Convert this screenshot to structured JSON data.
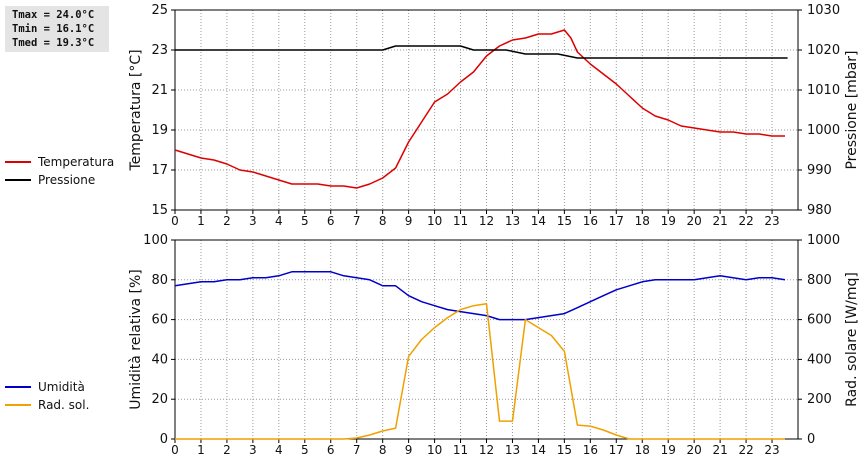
{
  "stats": [
    {
      "label": "Tmax",
      "text": "Tmax = 24.0°C"
    },
    {
      "label": "Tmin",
      "text": "Tmin = 16.1°C"
    },
    {
      "label": "Tmed",
      "text": "Tmed = 19.3°C"
    }
  ],
  "chart_data": [
    {
      "type": "line",
      "ylabel": "Temperatura [°C]",
      "y2label": "Pressione [mbar]",
      "x_ticks": [
        "0",
        "1",
        "2",
        "3",
        "4",
        "5",
        "6",
        "7",
        "8",
        "9",
        "10",
        "11",
        "12",
        "13",
        "14",
        "15",
        "16",
        "17",
        "18",
        "19",
        "20",
        "21",
        "22",
        "23"
      ],
      "xlim": [
        0,
        24
      ],
      "ylim": [
        15,
        25
      ],
      "y_ticks": [
        "15",
        "17",
        "19",
        "21",
        "23",
        "25"
      ],
      "y2lim": [
        980,
        1030
      ],
      "y2_ticks": [
        "980",
        "990",
        "1000",
        "1010",
        "1020",
        "1030"
      ],
      "grid": true,
      "legend_placement": "left",
      "series": [
        {
          "name": "Temperatura",
          "color": "#dd0000",
          "axis": "left",
          "x": [
            0,
            0.5,
            1,
            1.5,
            2,
            2.5,
            3,
            3.5,
            4,
            4.5,
            5,
            5.5,
            6,
            6.5,
            7,
            7.5,
            8,
            8.5,
            9,
            9.5,
            10,
            10.5,
            11,
            11.5,
            12,
            12.5,
            13,
            13.5,
            14,
            14.5,
            15,
            15.25,
            15.5,
            16,
            16.5,
            17,
            17.5,
            18,
            18.5,
            19,
            19.5,
            20,
            20.5,
            21,
            21.5,
            22,
            22.5,
            23,
            23.5
          ],
          "values": [
            18.0,
            17.8,
            17.6,
            17.5,
            17.3,
            17.0,
            16.9,
            16.7,
            16.5,
            16.3,
            16.3,
            16.3,
            16.2,
            16.2,
            16.1,
            16.3,
            16.6,
            17.1,
            18.4,
            19.4,
            20.4,
            20.8,
            21.4,
            21.9,
            22.7,
            23.2,
            23.5,
            23.6,
            23.8,
            23.8,
            24.0,
            23.6,
            22.9,
            22.3,
            21.8,
            21.3,
            20.7,
            20.1,
            19.7,
            19.5,
            19.2,
            19.1,
            19.0,
            18.9,
            18.9,
            18.8,
            18.8,
            18.7,
            18.7
          ]
        },
        {
          "name": "Pressione",
          "color": "#000000",
          "axis": "right",
          "x": [
            0,
            8,
            8.5,
            11,
            11.5,
            12.75,
            13.5,
            14.75,
            15.5,
            23.6
          ],
          "values": [
            1020,
            1020,
            1021,
            1021,
            1020,
            1020,
            1019,
            1019,
            1018,
            1018
          ]
        }
      ]
    },
    {
      "type": "line",
      "ylabel": "Umidità relativa [%]",
      "y2label": "Rad. solare [W/mq]",
      "x_ticks": [
        "0",
        "1",
        "2",
        "3",
        "4",
        "5",
        "6",
        "7",
        "8",
        "9",
        "10",
        "11",
        "12",
        "13",
        "14",
        "15",
        "16",
        "17",
        "18",
        "19",
        "20",
        "21",
        "22",
        "23"
      ],
      "xlim": [
        0,
        24
      ],
      "ylim": [
        0,
        100
      ],
      "y_ticks": [
        "0",
        "20",
        "40",
        "60",
        "80",
        "100"
      ],
      "y2lim": [
        0,
        1000
      ],
      "y2_ticks": [
        "0",
        "200",
        "400",
        "600",
        "800",
        "1000"
      ],
      "grid": true,
      "legend_placement": "left",
      "series": [
        {
          "name": "Umidità",
          "color": "#0000cc",
          "axis": "left",
          "x": [
            0,
            0.5,
            1,
            1.5,
            2,
            2.5,
            3,
            3.5,
            4,
            4.5,
            5,
            5.5,
            6,
            6.5,
            7,
            7.5,
            8,
            8.5,
            9,
            9.5,
            10,
            10.5,
            11,
            11.5,
            12,
            12.5,
            13,
            13.5,
            14,
            14.5,
            15,
            15.5,
            16,
            16.5,
            17,
            17.5,
            18,
            18.5,
            19,
            19.5,
            20,
            20.5,
            21,
            21.5,
            22,
            22.5,
            23,
            23.5
          ],
          "values": [
            77,
            78,
            79,
            79,
            80,
            80,
            81,
            81,
            82,
            84,
            84,
            84,
            84,
            82,
            81,
            80,
            77,
            77,
            72,
            69,
            67,
            65,
            64,
            63,
            62,
            60,
            60,
            60,
            61,
            62,
            63,
            66,
            69,
            72,
            75,
            77,
            79,
            80,
            80,
            80,
            80,
            81,
            82,
            81,
            80,
            81,
            81,
            80
          ]
        },
        {
          "name": "Rad. sol.",
          "color": "#f0a000",
          "axis": "right",
          "x": [
            0,
            6.5,
            7,
            7.5,
            8,
            8.5,
            9,
            9.5,
            10,
            10.5,
            11,
            11.5,
            12,
            12.5,
            13,
            13.5,
            14,
            14.5,
            15,
            15.5,
            16,
            16.5,
            17,
            17.5,
            18,
            23.5
          ],
          "values": [
            0,
            0,
            5,
            20,
            40,
            55,
            415,
            500,
            560,
            610,
            650,
            670,
            680,
            90,
            90,
            600,
            560,
            520,
            440,
            70,
            65,
            45,
            20,
            0,
            0,
            0
          ]
        }
      ]
    }
  ]
}
